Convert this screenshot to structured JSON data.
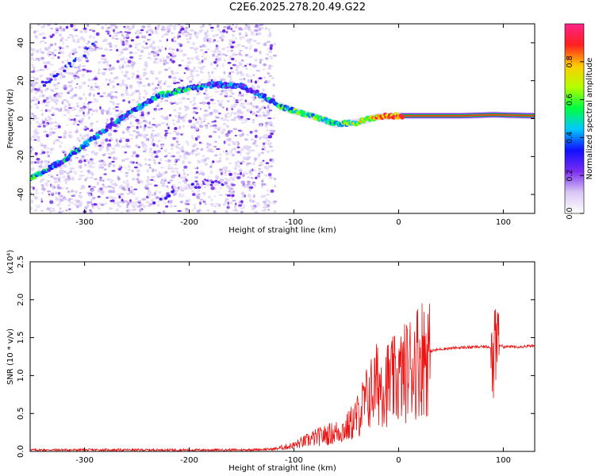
{
  "title": "C2E6.2025.278.20.49.G22",
  "chart_data": [
    {
      "type": "heatmap",
      "name": "spectrogram",
      "xlabel": "Height of straight line (km)",
      "ylabel": "Frequency (Hz)",
      "xlim": [
        -352,
        130
      ],
      "ylim": [
        -50,
        50
      ],
      "xticks": [
        -300,
        -200,
        -100,
        0,
        100
      ],
      "yticks": [
        -40,
        -20,
        0,
        20,
        40
      ],
      "colorbar": {
        "label": "Normalized spectral amplitude",
        "range": [
          0,
          1
        ],
        "ticks": [
          0.0,
          0.2,
          0.4,
          0.6,
          0.8
        ],
        "colormap": [
          "#ffffff",
          "#d9c6f5",
          "#7a2cf0",
          "#1010ff",
          "#00c8ff",
          "#00ff40",
          "#b4ff00",
          "#ffcc00",
          "#ff2020",
          "#ff2288"
        ]
      },
      "noise_region_x": [
        -352,
        -118
      ],
      "tracks": [
        {
          "name": "main-arc",
          "x": [
            -352,
            -320,
            -290,
            -260,
            -230,
            -200,
            -175,
            -150,
            -130,
            -115,
            -100,
            -80,
            -60,
            -40,
            -20,
            0,
            30,
            60,
            90,
            130
          ],
          "y": [
            -32,
            -22,
            -10,
            2,
            12,
            16,
            18,
            17,
            12,
            7,
            4,
            1,
            -3,
            -2,
            1,
            1.5,
            1.5,
            1.5,
            2,
            1.5
          ],
          "amplitude": [
            0.45,
            0.4,
            0.4,
            0.35,
            0.4,
            0.45,
            0.35,
            0.3,
            0.35,
            0.45,
            0.5,
            0.55,
            0.5,
            0.6,
            0.75,
            0.85,
            0.9,
            0.9,
            0.85,
            0.9
          ]
        },
        {
          "name": "secondary-branch",
          "x": [
            -340,
            -320,
            -300,
            -290
          ],
          "y": [
            18,
            26,
            34,
            40
          ],
          "amplitude": [
            0.2,
            0.2,
            0.2,
            0.2
          ]
        },
        {
          "name": "lower-branch",
          "x": [
            -240,
            -220,
            -200,
            -180,
            -160
          ],
          "y": [
            -45,
            -40,
            -36,
            -34,
            -33
          ],
          "amplitude": [
            0.15,
            0.15,
            0.15,
            0.15,
            0.15
          ]
        }
      ]
    },
    {
      "type": "line",
      "name": "snr",
      "xlabel": "Height of straight line (km)",
      "ylabel": "SNR (10 * v/v)",
      "y_multiplier": "(x10⁴)",
      "xlim": [
        -352,
        130
      ],
      "ylim": [
        0,
        2.5
      ],
      "xticks": [
        -300,
        -200,
        -100,
        0,
        100
      ],
      "yticks": [
        0.0,
        0.5,
        1.0,
        1.5,
        2.0,
        2.5
      ],
      "color": "#ee1111",
      "series": [
        {
          "name": "SNR",
          "x": [
            -352,
            -300,
            -250,
            -200,
            -150,
            -120,
            -100,
            -80,
            -60,
            -50,
            -40,
            -30,
            -20,
            -10,
            0,
            10,
            20,
            30,
            40,
            60,
            80,
            88,
            92,
            95,
            100,
            110,
            130
          ],
          "y": [
            0.02,
            0.02,
            0.02,
            0.02,
            0.02,
            0.03,
            0.08,
            0.18,
            0.25,
            0.3,
            0.45,
            0.7,
            0.9,
            0.9,
            0.95,
            1.1,
            1.25,
            1.32,
            1.35,
            1.37,
            1.38,
            1.38,
            1.05,
            1.42,
            1.38,
            1.38,
            1.39
          ]
        }
      ]
    }
  ]
}
